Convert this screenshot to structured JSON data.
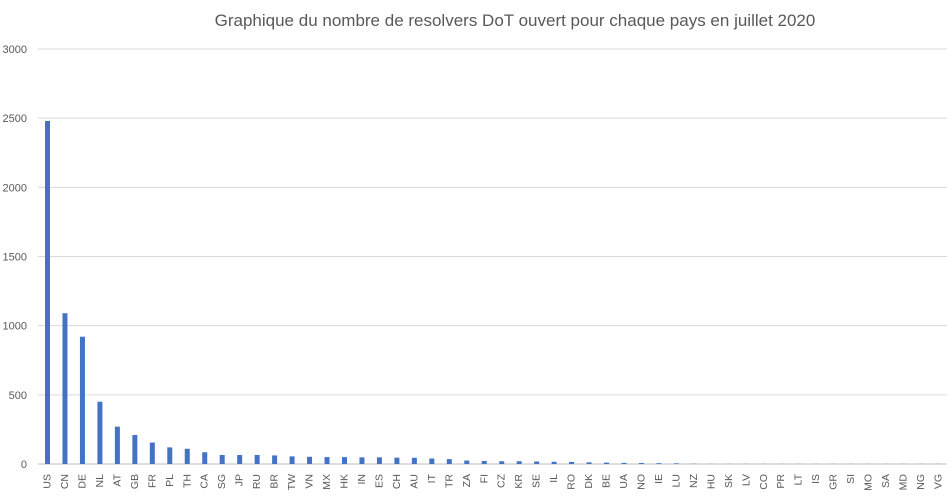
{
  "chart_data": {
    "type": "bar",
    "title": "Graphique du nombre de resolvers DoT ouvert pour chaque pays en juillet 2020",
    "xlabel": "",
    "ylabel": "",
    "ylim": [
      0,
      3000
    ],
    "yticks": [
      0,
      500,
      1000,
      1500,
      2000,
      2500,
      3000
    ],
    "grid": true,
    "legend": "none",
    "bar_color": "#4472c4",
    "categories": [
      "US",
      "CN",
      "DE",
      "NL",
      "AT",
      "GB",
      "FR",
      "PL",
      "TH",
      "CA",
      "SG",
      "JP",
      "RU",
      "BR",
      "TW",
      "VN",
      "MX",
      "HK",
      "IN",
      "ES",
      "CH",
      "AU",
      "IT",
      "TR",
      "ZA",
      "FI",
      "CZ",
      "KR",
      "SE",
      "IL",
      "RO",
      "DK",
      "BE",
      "UA",
      "NO",
      "IE",
      "LU",
      "NZ",
      "HU",
      "SK",
      "LV",
      "CO",
      "PR",
      "LT",
      "IS",
      "GR",
      "SI",
      "MO",
      "SA",
      "MD",
      "NG",
      "VG"
    ],
    "values": [
      2480,
      1090,
      920,
      450,
      270,
      210,
      155,
      120,
      110,
      85,
      65,
      65,
      65,
      62,
      55,
      52,
      50,
      50,
      48,
      48,
      46,
      45,
      40,
      35,
      25,
      22,
      20,
      20,
      18,
      16,
      15,
      12,
      10,
      8,
      7,
      6,
      5,
      2,
      1,
      1,
      1,
      1,
      1,
      1,
      1,
      1,
      1,
      1,
      1,
      1,
      1,
      1
    ]
  }
}
